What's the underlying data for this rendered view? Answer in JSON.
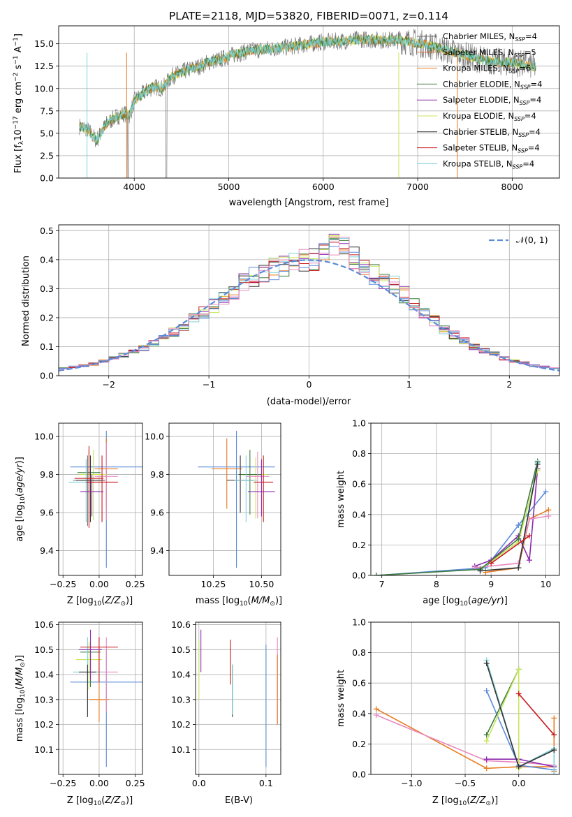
{
  "title": "PLATE=2118, MJD=53820, FIBERID=0071, z=0.114",
  "labels": {
    "spec_x": "wavelength [Angstrom, rest frame]",
    "spec_y": "Flux [f",
    "hist_x": "(data-model)/error",
    "hist_y": "Normed distribution",
    "gauss_legend": "𝒩(0, 1)",
    "age_y": "age  [log",
    "z_x": "Z [log",
    "mass_x": "mass [log",
    "mw_y": "mass weight",
    "age_x": "age  [log",
    "mass_y": "mass [log",
    "ebv_x": "E(B-V)"
  },
  "colors": {
    "Chabrier MILES": "#6f6f6f",
    "Salpeter MILES": "#e8743b",
    "Kroupa MILES": "#e87b1f",
    "Chabrier ELODIE": "#3d7a3d",
    "Salpeter ELODIE": "#8c2bb0",
    "Kroupa ELODIE": "#c8e65a",
    "Chabrier STELIB": "#333333",
    "Salpeter STELIB": "#c8181b",
    "Kroupa STELIB": "#7fd3d8",
    "blue": "#5b8bd9",
    "pink": "#e88bc0"
  },
  "chart_data": [
    {
      "type": "line",
      "panel": "spectrum",
      "xlim": [
        3200,
        8500
      ],
      "ylim": [
        0,
        17
      ],
      "xticks": [
        4000,
        5000,
        6000,
        7000,
        8000
      ],
      "yticks": [
        0.0,
        2.5,
        5.0,
        7.5,
        10.0,
        12.5,
        15.0
      ],
      "legend": [
        {
          "pre": "Chabrier MILES, N",
          "sub": "SSP",
          "post": "=4"
        },
        {
          "pre": "Salpeter MILES, N",
          "sub": "SSP",
          "post": "=5"
        },
        {
          "pre": "Kroupa MILES, N",
          "sub": "SSP",
          "post": "=6"
        },
        {
          "pre": "Chabrier ELODIE, N",
          "sub": "SSP",
          "post": "=4"
        },
        {
          "pre": "Salpeter ELODIE, N",
          "sub": "SSP",
          "post": "=4"
        },
        {
          "pre": "Kroupa ELODIE, N",
          "sub": "SSP",
          "post": "=4"
        },
        {
          "pre": "Chabrier STELIB, N",
          "sub": "SSP",
          "post": "=4"
        },
        {
          "pre": "Salpeter STELIB, N",
          "sub": "SSP",
          "post": "=4"
        },
        {
          "pre": "Kroupa STELIB, N",
          "sub": "SSP",
          "post": "=4"
        }
      ],
      "continuum_x": [
        3420,
        3500,
        3600,
        3700,
        3800,
        3900,
        3950,
        4000,
        4100,
        4200,
        4300,
        4400,
        4500,
        4600,
        4700,
        4800,
        4900,
        5000,
        5200,
        5400,
        5600,
        5800,
        6000,
        6200,
        6400,
        6600,
        6800,
        7000,
        7200,
        7400,
        7600,
        7800,
        8000,
        8200,
        8250
      ],
      "continuum_y": [
        5.8,
        5.5,
        4.2,
        6.0,
        6.8,
        7.2,
        7.0,
        8.6,
        9.5,
        10.2,
        10.0,
        11.4,
        11.8,
        12.2,
        12.5,
        13.0,
        13.2,
        13.6,
        14.2,
        14.4,
        14.6,
        14.9,
        15.2,
        15.3,
        15.5,
        15.4,
        15.4,
        15.1,
        14.6,
        14.0,
        13.4,
        13.0,
        12.9,
        12.6,
        12.4
      ]
    },
    {
      "type": "histogram",
      "panel": "residuals",
      "xlim": [
        -2.5,
        2.5
      ],
      "ylim": [
        0,
        0.52
      ],
      "xticks": [
        -2,
        -1,
        0,
        1,
        2
      ],
      "yticks": [
        0.0,
        0.1,
        0.2,
        0.3,
        0.4,
        0.5
      ],
      "bin_edges": [
        -2.5,
        -2.4,
        -2.3,
        -2.2,
        -2.1,
        -2.0,
        -1.9,
        -1.8,
        -1.7,
        -1.6,
        -1.5,
        -1.4,
        -1.3,
        -1.2,
        -1.1,
        -1.0,
        -0.9,
        -0.8,
        -0.7,
        -0.6,
        -0.5,
        -0.4,
        -0.3,
        -0.2,
        -0.1,
        0.0,
        0.1,
        0.2,
        0.3,
        0.4,
        0.5,
        0.6,
        0.7,
        0.8,
        0.9,
        1.0,
        1.1,
        1.2,
        1.3,
        1.4,
        1.5,
        1.6,
        1.7,
        1.8,
        1.9,
        2.0,
        2.1,
        2.2,
        2.3,
        2.4,
        2.5
      ],
      "base_values": [
        0.025,
        0.03,
        0.035,
        0.04,
        0.05,
        0.06,
        0.07,
        0.08,
        0.095,
        0.11,
        0.125,
        0.15,
        0.17,
        0.2,
        0.22,
        0.24,
        0.27,
        0.29,
        0.32,
        0.34,
        0.35,
        0.37,
        0.38,
        0.39,
        0.395,
        0.4,
        0.42,
        0.45,
        0.44,
        0.41,
        0.37,
        0.35,
        0.33,
        0.31,
        0.28,
        0.24,
        0.21,
        0.19,
        0.16,
        0.14,
        0.12,
        0.1,
        0.085,
        0.075,
        0.06,
        0.05,
        0.045,
        0.035,
        0.03,
        0.025
      ],
      "gaussian": "N(0,1)"
    },
    {
      "type": "scatter",
      "panel": "age_vs_Z",
      "xlim": [
        -0.28,
        0.3
      ],
      "ylim": [
        9.27,
        10.07
      ],
      "xticks": [
        -0.25,
        0.0,
        0.25
      ],
      "yticks": [
        9.4,
        9.6,
        9.8,
        10.0
      ],
      "points": [
        {
          "x": 0.05,
          "y": 9.84,
          "xerr": 0.25,
          "y1": 9.31,
          "y2": 10.03,
          "c": "blue"
        },
        {
          "x": 0.05,
          "y": 9.83,
          "xerr": 0.08,
          "y1": 9.62,
          "y2": 9.99,
          "c": "Kroupa MILES"
        },
        {
          "x": -0.04,
          "y": 9.8,
          "xerr": 0.1,
          "y1": 9.56,
          "y2": 9.93,
          "c": "Kroupa ELODIE"
        },
        {
          "x": -0.07,
          "y": 9.81,
          "xerr": 0.08,
          "y1": 9.55,
          "y2": 9.93,
          "c": "Chabrier ELODIE"
        },
        {
          "x": 0.05,
          "y": 9.79,
          "xerr": 0.08,
          "y1": 9.56,
          "y2": 9.97,
          "c": "pink"
        },
        {
          "x": -0.08,
          "y": 9.77,
          "xerr": 0.1,
          "y1": 9.53,
          "y2": 9.9,
          "c": "Chabrier MILES"
        },
        {
          "x": -0.09,
          "y": 9.76,
          "xerr": 0.12,
          "y1": 9.55,
          "y2": 9.88,
          "c": "Kroupa STELIB"
        },
        {
          "x": -0.06,
          "y": 9.77,
          "xerr": 0.1,
          "y1": 9.55,
          "y2": 9.9,
          "c": "Chabrier STELIB"
        },
        {
          "x": 0.02,
          "y": 9.76,
          "xerr": 0.11,
          "y1": 9.55,
          "y2": 9.9,
          "c": "Salpeter STELIB"
        },
        {
          "x": -0.05,
          "y": 9.71,
          "xerr": 0.08,
          "y1": 9.58,
          "y2": 9.8,
          "c": "Salpeter ELODIE"
        },
        {
          "x": -0.07,
          "y": 9.78,
          "xerr": 0.1,
          "y1": 9.52,
          "y2": 9.95,
          "c": "Salpeter STELIB"
        }
      ]
    },
    {
      "type": "scatter",
      "panel": "age_vs_mass",
      "xlim": [
        10.02,
        10.6
      ],
      "ylim": [
        9.27,
        10.07
      ],
      "xticks": [
        10.25,
        10.5
      ],
      "yticks": [
        9.4,
        9.6,
        9.8,
        10.0
      ],
      "points": [
        {
          "x": 10.37,
          "y": 9.84,
          "xerr": 0.2,
          "y1": 9.31,
          "y2": 10.03,
          "c": "blue"
        },
        {
          "x": 10.32,
          "y": 9.83,
          "xerr": 0.08,
          "y1": 9.62,
          "y2": 9.99,
          "c": "Kroupa MILES"
        },
        {
          "x": 10.47,
          "y": 9.8,
          "xerr": 0.06,
          "y1": 9.57,
          "y2": 9.89,
          "c": "Kroupa ELODIE"
        },
        {
          "x": 10.44,
          "y": 9.8,
          "xerr": 0.06,
          "y1": 9.59,
          "y2": 9.93,
          "c": "Chabrier ELODIE"
        },
        {
          "x": 10.48,
          "y": 9.79,
          "xerr": 0.06,
          "y1": 9.57,
          "y2": 9.92,
          "c": "pink"
        },
        {
          "x": 10.39,
          "y": 9.77,
          "xerr": 0.07,
          "y1": 9.6,
          "y2": 9.9,
          "c": "Chabrier STELIB"
        },
        {
          "x": 10.42,
          "y": 9.77,
          "xerr": 0.06,
          "y1": 9.55,
          "y2": 9.9,
          "c": "Kroupa STELIB"
        },
        {
          "x": 10.51,
          "y": 9.76,
          "xerr": 0.05,
          "y1": 9.55,
          "y2": 9.9,
          "c": "Salpeter STELIB"
        },
        {
          "x": 10.5,
          "y": 9.71,
          "xerr": 0.07,
          "y1": 9.58,
          "y2": 9.88,
          "c": "Salpeter ELODIE"
        }
      ]
    },
    {
      "type": "line",
      "panel": "massweight_vs_age",
      "xlim": [
        6.8,
        10.25
      ],
      "ylim": [
        0,
        1.0
      ],
      "xticks": [
        7,
        8,
        9,
        10
      ],
      "yticks": [
        0.0,
        0.2,
        0.4,
        0.6,
        0.8,
        1.0
      ],
      "series": [
        {
          "c": "blue",
          "x": [
            6.9,
            8.9,
            9.5,
            10.0
          ],
          "y": [
            0.0,
            0.05,
            0.33,
            0.55
          ]
        },
        {
          "c": "Kroupa MILES",
          "x": [
            8.9,
            9.5,
            9.7,
            10.05
          ],
          "y": [
            0.02,
            0.05,
            0.37,
            0.43
          ]
        },
        {
          "c": "Salpeter ELODIE",
          "x": [
            8.7,
            9.0,
            9.5,
            9.7,
            9.85
          ],
          "y": [
            0.06,
            0.1,
            0.26,
            0.1,
            0.7
          ]
        },
        {
          "c": "pink",
          "x": [
            8.7,
            9.5,
            9.7,
            10.05
          ],
          "y": [
            0.05,
            0.08,
            0.37,
            0.39
          ]
        },
        {
          "c": "Kroupa ELODIE",
          "x": [
            8.8,
            9.5,
            9.85
          ],
          "y": [
            0.04,
            0.22,
            0.69
          ]
        },
        {
          "c": "Chabrier ELODIE",
          "x": [
            6.9,
            8.8,
            9.5,
            9.85
          ],
          "y": [
            0.0,
            0.04,
            0.24,
            0.75
          ]
        },
        {
          "c": "Kroupa STELIB",
          "x": [
            8.8,
            9.5,
            9.85
          ],
          "y": [
            0.03,
            0.05,
            0.74
          ]
        },
        {
          "c": "Chabrier STELIB",
          "x": [
            8.8,
            9.5,
            9.85
          ],
          "y": [
            0.03,
            0.05,
            0.73
          ]
        },
        {
          "c": "Salpeter STELIB",
          "x": [
            9.0,
            9.7
          ],
          "y": [
            0.08,
            0.26
          ]
        }
      ]
    },
    {
      "type": "scatter",
      "panel": "mass_vs_Z",
      "xlim": [
        -0.28,
        0.3
      ],
      "ylim": [
        10.0,
        10.61
      ],
      "xticks": [
        -0.25,
        0.0,
        0.25
      ],
      "yticks": [
        10.1,
        10.2,
        10.3,
        10.4,
        10.5,
        10.6
      ],
      "points": [
        {
          "x": 0.05,
          "y": 10.37,
          "xerr": 0.25,
          "y1": 10.03,
          "y2": 10.5,
          "c": "blue"
        },
        {
          "x": 0.0,
          "y": 10.3,
          "xerr": 0.07,
          "y1": 10.21,
          "y2": 10.5,
          "c": "Kroupa MILES"
        },
        {
          "x": -0.07,
          "y": 10.46,
          "xerr": 0.09,
          "y1": 10.34,
          "y2": 10.53,
          "c": "Kroupa ELODIE"
        },
        {
          "x": -0.06,
          "y": 10.49,
          "xerr": 0.07,
          "y1": 10.35,
          "y2": 10.53,
          "c": "Chabrier ELODIE"
        },
        {
          "x": 0.05,
          "y": 10.41,
          "xerr": 0.08,
          "y1": 10.25,
          "y2": 10.55,
          "c": "pink"
        },
        {
          "x": -0.08,
          "y": 10.41,
          "xerr": 0.1,
          "y1": 10.23,
          "y2": 10.55,
          "c": "Kroupa STELIB"
        },
        {
          "x": -0.08,
          "y": 10.41,
          "xerr": 0.06,
          "y1": 10.23,
          "y2": 10.44,
          "c": "Chabrier STELIB"
        },
        {
          "x": 0.0,
          "y": 10.51,
          "xerr": 0.13,
          "y1": 10.37,
          "y2": 10.55,
          "c": "Salpeter STELIB"
        },
        {
          "x": -0.06,
          "y": 10.5,
          "xerr": 0.08,
          "y1": 10.38,
          "y2": 10.58,
          "c": "Salpeter ELODIE"
        }
      ]
    },
    {
      "type": "scatter",
      "panel": "mass_vs_EBV",
      "xlim": [
        -0.005,
        0.122
      ],
      "ylim": [
        10.0,
        10.61
      ],
      "xticks": [
        0.0,
        0.1
      ],
      "yticks": [
        10.1,
        10.2,
        10.3,
        10.4,
        10.5,
        10.6
      ],
      "points": [
        {
          "x": 0.0,
          "y": 10.42,
          "y1": 10.3,
          "y2": 10.54,
          "c": "Kroupa ELODIE"
        },
        {
          "x": 0.003,
          "y": 10.5,
          "y1": 10.41,
          "y2": 10.58,
          "c": "Salpeter ELODIE"
        },
        {
          "x": 0.047,
          "y": 10.45,
          "y1": 10.36,
          "y2": 10.54,
          "c": "Salpeter STELIB"
        },
        {
          "x": 0.05,
          "y": 10.34,
          "y1": 10.23,
          "y2": 10.44,
          "c": "Chabrier STELIB"
        },
        {
          "x": 0.05,
          "y": 10.34,
          "y1": 10.24,
          "y2": 10.44,
          "c": "Kroupa STELIB"
        },
        {
          "x": 0.1,
          "y": 10.28,
          "y1": 10.03,
          "y2": 10.52,
          "c": "blue"
        },
        {
          "x": 0.117,
          "y": 10.37,
          "y1": 10.2,
          "y2": 10.55,
          "c": "pink"
        },
        {
          "x": 0.117,
          "y": 10.34,
          "y1": 10.2,
          "y2": 10.48,
          "c": "Kroupa MILES"
        }
      ]
    },
    {
      "type": "line",
      "panel": "massweight_vs_Z",
      "xlim": [
        -1.38,
        0.38
      ],
      "ylim": [
        0,
        1.0
      ],
      "xticks": [
        -1.0,
        -0.5,
        0.0
      ],
      "yticks": [
        0.0,
        0.2,
        0.4,
        0.6,
        0.8,
        1.0
      ],
      "series": [
        {
          "c": "Kroupa MILES",
          "x": [
            -1.33,
            -0.3,
            0.0,
            0.33,
            0.33,
            0.33
          ],
          "y": [
            0.43,
            0.04,
            0.05,
            0.05,
            0.02,
            0.37
          ]
        },
        {
          "c": "pink",
          "x": [
            -1.33,
            -0.3,
            0.0,
            0.33
          ],
          "y": [
            0.39,
            0.09,
            0.08,
            0.06
          ]
        },
        {
          "c": "Salpeter ELODIE",
          "x": [
            -0.3,
            0.0,
            0.33
          ],
          "y": [
            0.1,
            0.1,
            0.05
          ]
        },
        {
          "c": "blue",
          "x": [
            -0.3,
            0.0,
            0.33
          ],
          "y": [
            0.55,
            0.06,
            0.03
          ]
        },
        {
          "c": "Chabrier ELODIE",
          "x": [
            -0.3,
            0.0
          ],
          "y": [
            0.26,
            0.69
          ]
        },
        {
          "c": "Kroupa ELODIE",
          "x": [
            -0.3,
            0.0,
            0.0
          ],
          "y": [
            0.22,
            0.69,
            0.04
          ]
        },
        {
          "c": "Kroupa STELIB",
          "x": [
            -0.3,
            0.0,
            0.33,
            0.33
          ],
          "y": [
            0.75,
            0.05,
            0.17,
            0.0
          ]
        },
        {
          "c": "Chabrier STELIB",
          "x": [
            -0.3,
            0.0,
            0.33
          ],
          "y": [
            0.73,
            0.05,
            0.16
          ]
        },
        {
          "c": "Salpeter STELIB",
          "x": [
            0.0,
            0.33
          ],
          "y": [
            0.53,
            0.26
          ]
        }
      ]
    }
  ]
}
